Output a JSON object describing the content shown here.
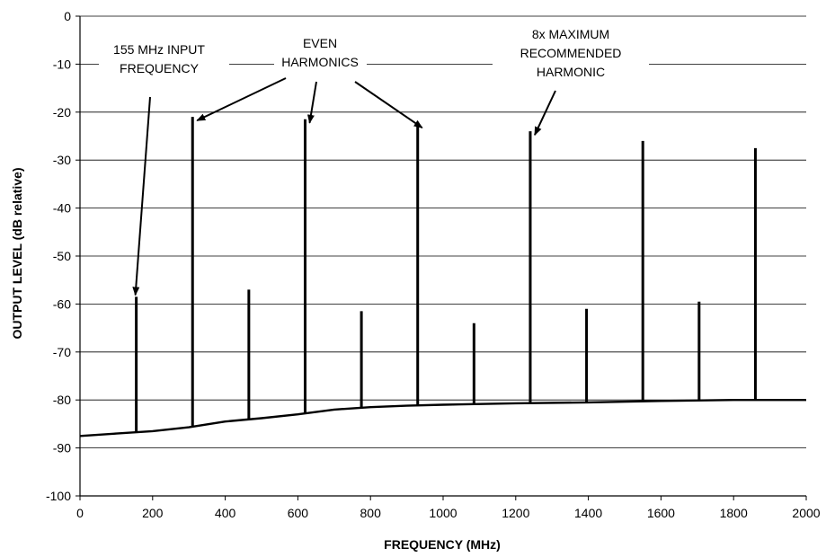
{
  "chart_data": {
    "type": "line",
    "title": "",
    "xlabel": "FREQUENCY (MHz)",
    "ylabel": "OUTPUT LEVEL (dB relative)",
    "xlim": [
      0,
      2000
    ],
    "ylim": [
      -100,
      0
    ],
    "x_ticks": [
      "0",
      "200",
      "400",
      "600",
      "800",
      "1000",
      "1200",
      "1400",
      "1600",
      "1800",
      "2000"
    ],
    "y_ticks": [
      "0",
      "-10",
      "-20",
      "-30",
      "-40",
      "-50",
      "-60",
      "-70",
      "-80",
      "-90",
      "-100"
    ],
    "grid": "horizontal",
    "noise_floor": {
      "x": [
        0,
        100,
        200,
        300,
        400,
        500,
        600,
        700,
        800,
        900,
        1000,
        1200,
        1400,
        1600,
        1800,
        2000
      ],
      "y": [
        -87.5,
        -87,
        -86.5,
        -85.7,
        -84.5,
        -83.8,
        -83,
        -82,
        -81.5,
        -81.2,
        -81,
        -80.7,
        -80.5,
        -80.2,
        -80,
        -80
      ]
    },
    "spikes": [
      {
        "x": 155,
        "y": -58.5
      },
      {
        "x": 310,
        "y": -21
      },
      {
        "x": 465,
        "y": -57
      },
      {
        "x": 620,
        "y": -21.5
      },
      {
        "x": 775,
        "y": -61.5
      },
      {
        "x": 930,
        "y": -22.5
      },
      {
        "x": 1085,
        "y": -64
      },
      {
        "x": 1240,
        "y": -24
      },
      {
        "x": 1395,
        "y": -61
      },
      {
        "x": 1550,
        "y": -26
      },
      {
        "x": 1705,
        "y": -59.5
      },
      {
        "x": 1860,
        "y": -27.5
      }
    ],
    "annotations": [
      {
        "id": "input",
        "lines": [
          "155 MHz INPUT",
          "FREQUENCY"
        ],
        "targets": [
          {
            "x": 155,
            "y": -58.5
          }
        ]
      },
      {
        "id": "even",
        "lines": [
          "EVEN",
          "HARMONICS"
        ],
        "targets": [
          {
            "x": 310,
            "y": -21
          },
          {
            "x": 620,
            "y": -21.5
          },
          {
            "x": 930,
            "y": -22.5
          }
        ]
      },
      {
        "id": "max",
        "lines": [
          "8x MAXIMUM",
          "RECOMMENDED",
          "HARMONIC"
        ],
        "targets": [
          {
            "x": 1240,
            "y": -24
          }
        ]
      }
    ]
  }
}
